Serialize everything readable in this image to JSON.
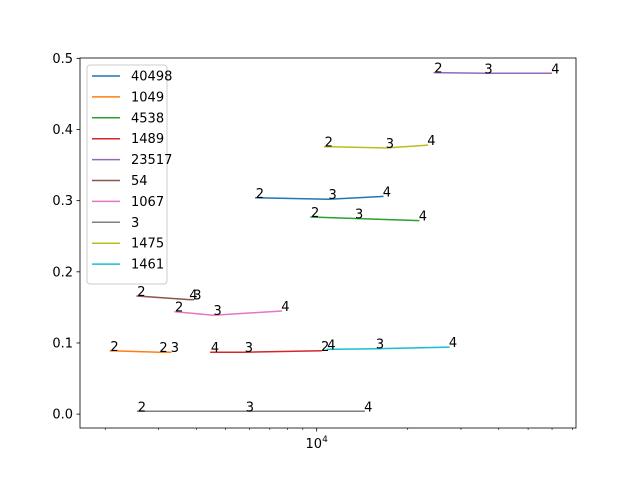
{
  "chart_data": {
    "type": "line",
    "title": "",
    "xlabel": "",
    "ylabel": "",
    "xscale": "log",
    "xlim": [
      1650,
      72000
    ],
    "ylim": [
      -0.0195,
      0.5005
    ],
    "x_tick_labels": [
      {
        "value": 10000,
        "label": "10^4"
      }
    ],
    "x_minor_ticks": [
      2000,
      3000,
      4000,
      5000,
      6000,
      7000,
      8000,
      9000,
      20000,
      30000,
      40000,
      50000,
      60000,
      70000
    ],
    "yticks": [
      0.0,
      0.1,
      0.2,
      0.3,
      0.4,
      0.5
    ],
    "ytick_labels": [
      "0.0",
      "0.1",
      "0.2",
      "0.3",
      "0.4",
      "0.5"
    ],
    "grid": false,
    "legend_position": "upper-left",
    "series": [
      {
        "name": "40498",
        "color": "#1f77b4",
        "points": [
          {
            "x": 6290,
            "y": 0.304,
            "label": "2"
          },
          {
            "x": 10940,
            "y": 0.302,
            "label": "3"
          },
          {
            "x": 16540,
            "y": 0.306,
            "label": "4"
          }
        ]
      },
      {
        "name": "1049",
        "color": "#ff7f0e",
        "points": [
          {
            "x": 2080,
            "y": 0.089,
            "label": "2"
          },
          {
            "x": 3020,
            "y": 0.087,
            "label": "2"
          },
          {
            "x": 3290,
            "y": 0.087,
            "label": "3"
          }
        ]
      },
      {
        "name": "4538",
        "color": "#2ca02c",
        "points": [
          {
            "x": 9580,
            "y": 0.277,
            "label": "2"
          },
          {
            "x": 13390,
            "y": 0.275,
            "label": "3"
          },
          {
            "x": 21740,
            "y": 0.272,
            "label": "4"
          }
        ]
      },
      {
        "name": "1489",
        "color": "#d62728",
        "points": [
          {
            "x": 4470,
            "y": 0.087,
            "label": "4"
          },
          {
            "x": 5780,
            "y": 0.087,
            "label": "3"
          },
          {
            "x": 10330,
            "y": 0.089,
            "label": "2"
          }
        ]
      },
      {
        "name": "23517",
        "color": "#9467bd",
        "points": [
          {
            "x": 24470,
            "y": 0.48,
            "label": "2"
          },
          {
            "x": 35860,
            "y": 0.479,
            "label": "3"
          },
          {
            "x": 59640,
            "y": 0.479,
            "label": "4"
          }
        ]
      },
      {
        "name": "54",
        "color": "#8c564b",
        "points": [
          {
            "x": 2550,
            "y": 0.166,
            "label": "2"
          },
          {
            "x": 3790,
            "y": 0.161,
            "label": "4"
          },
          {
            "x": 3910,
            "y": 0.161,
            "label": "3"
          }
        ]
      },
      {
        "name": "1067",
        "color": "#e377c2",
        "points": [
          {
            "x": 3400,
            "y": 0.144,
            "label": "2"
          },
          {
            "x": 4560,
            "y": 0.139,
            "label": "3"
          },
          {
            "x": 7640,
            "y": 0.145,
            "label": "4"
          }
        ]
      },
      {
        "name": "3",
        "color": "#7f7f7f",
        "points": [
          {
            "x": 2560,
            "y": 0.004,
            "label": "2"
          },
          {
            "x": 5830,
            "y": 0.004,
            "label": "3"
          },
          {
            "x": 14350,
            "y": 0.004,
            "label": "4"
          }
        ]
      },
      {
        "name": "1475",
        "color": "#bcbd22",
        "points": [
          {
            "x": 10620,
            "y": 0.376,
            "label": "2"
          },
          {
            "x": 16910,
            "y": 0.374,
            "label": "3"
          },
          {
            "x": 23210,
            "y": 0.378,
            "label": "4"
          }
        ]
      },
      {
        "name": "1461",
        "color": "#17becf",
        "points": [
          {
            "x": 10840,
            "y": 0.091,
            "label": "4"
          },
          {
            "x": 15690,
            "y": 0.092,
            "label": "3"
          },
          {
            "x": 27350,
            "y": 0.094,
            "label": "4"
          }
        ]
      }
    ]
  }
}
